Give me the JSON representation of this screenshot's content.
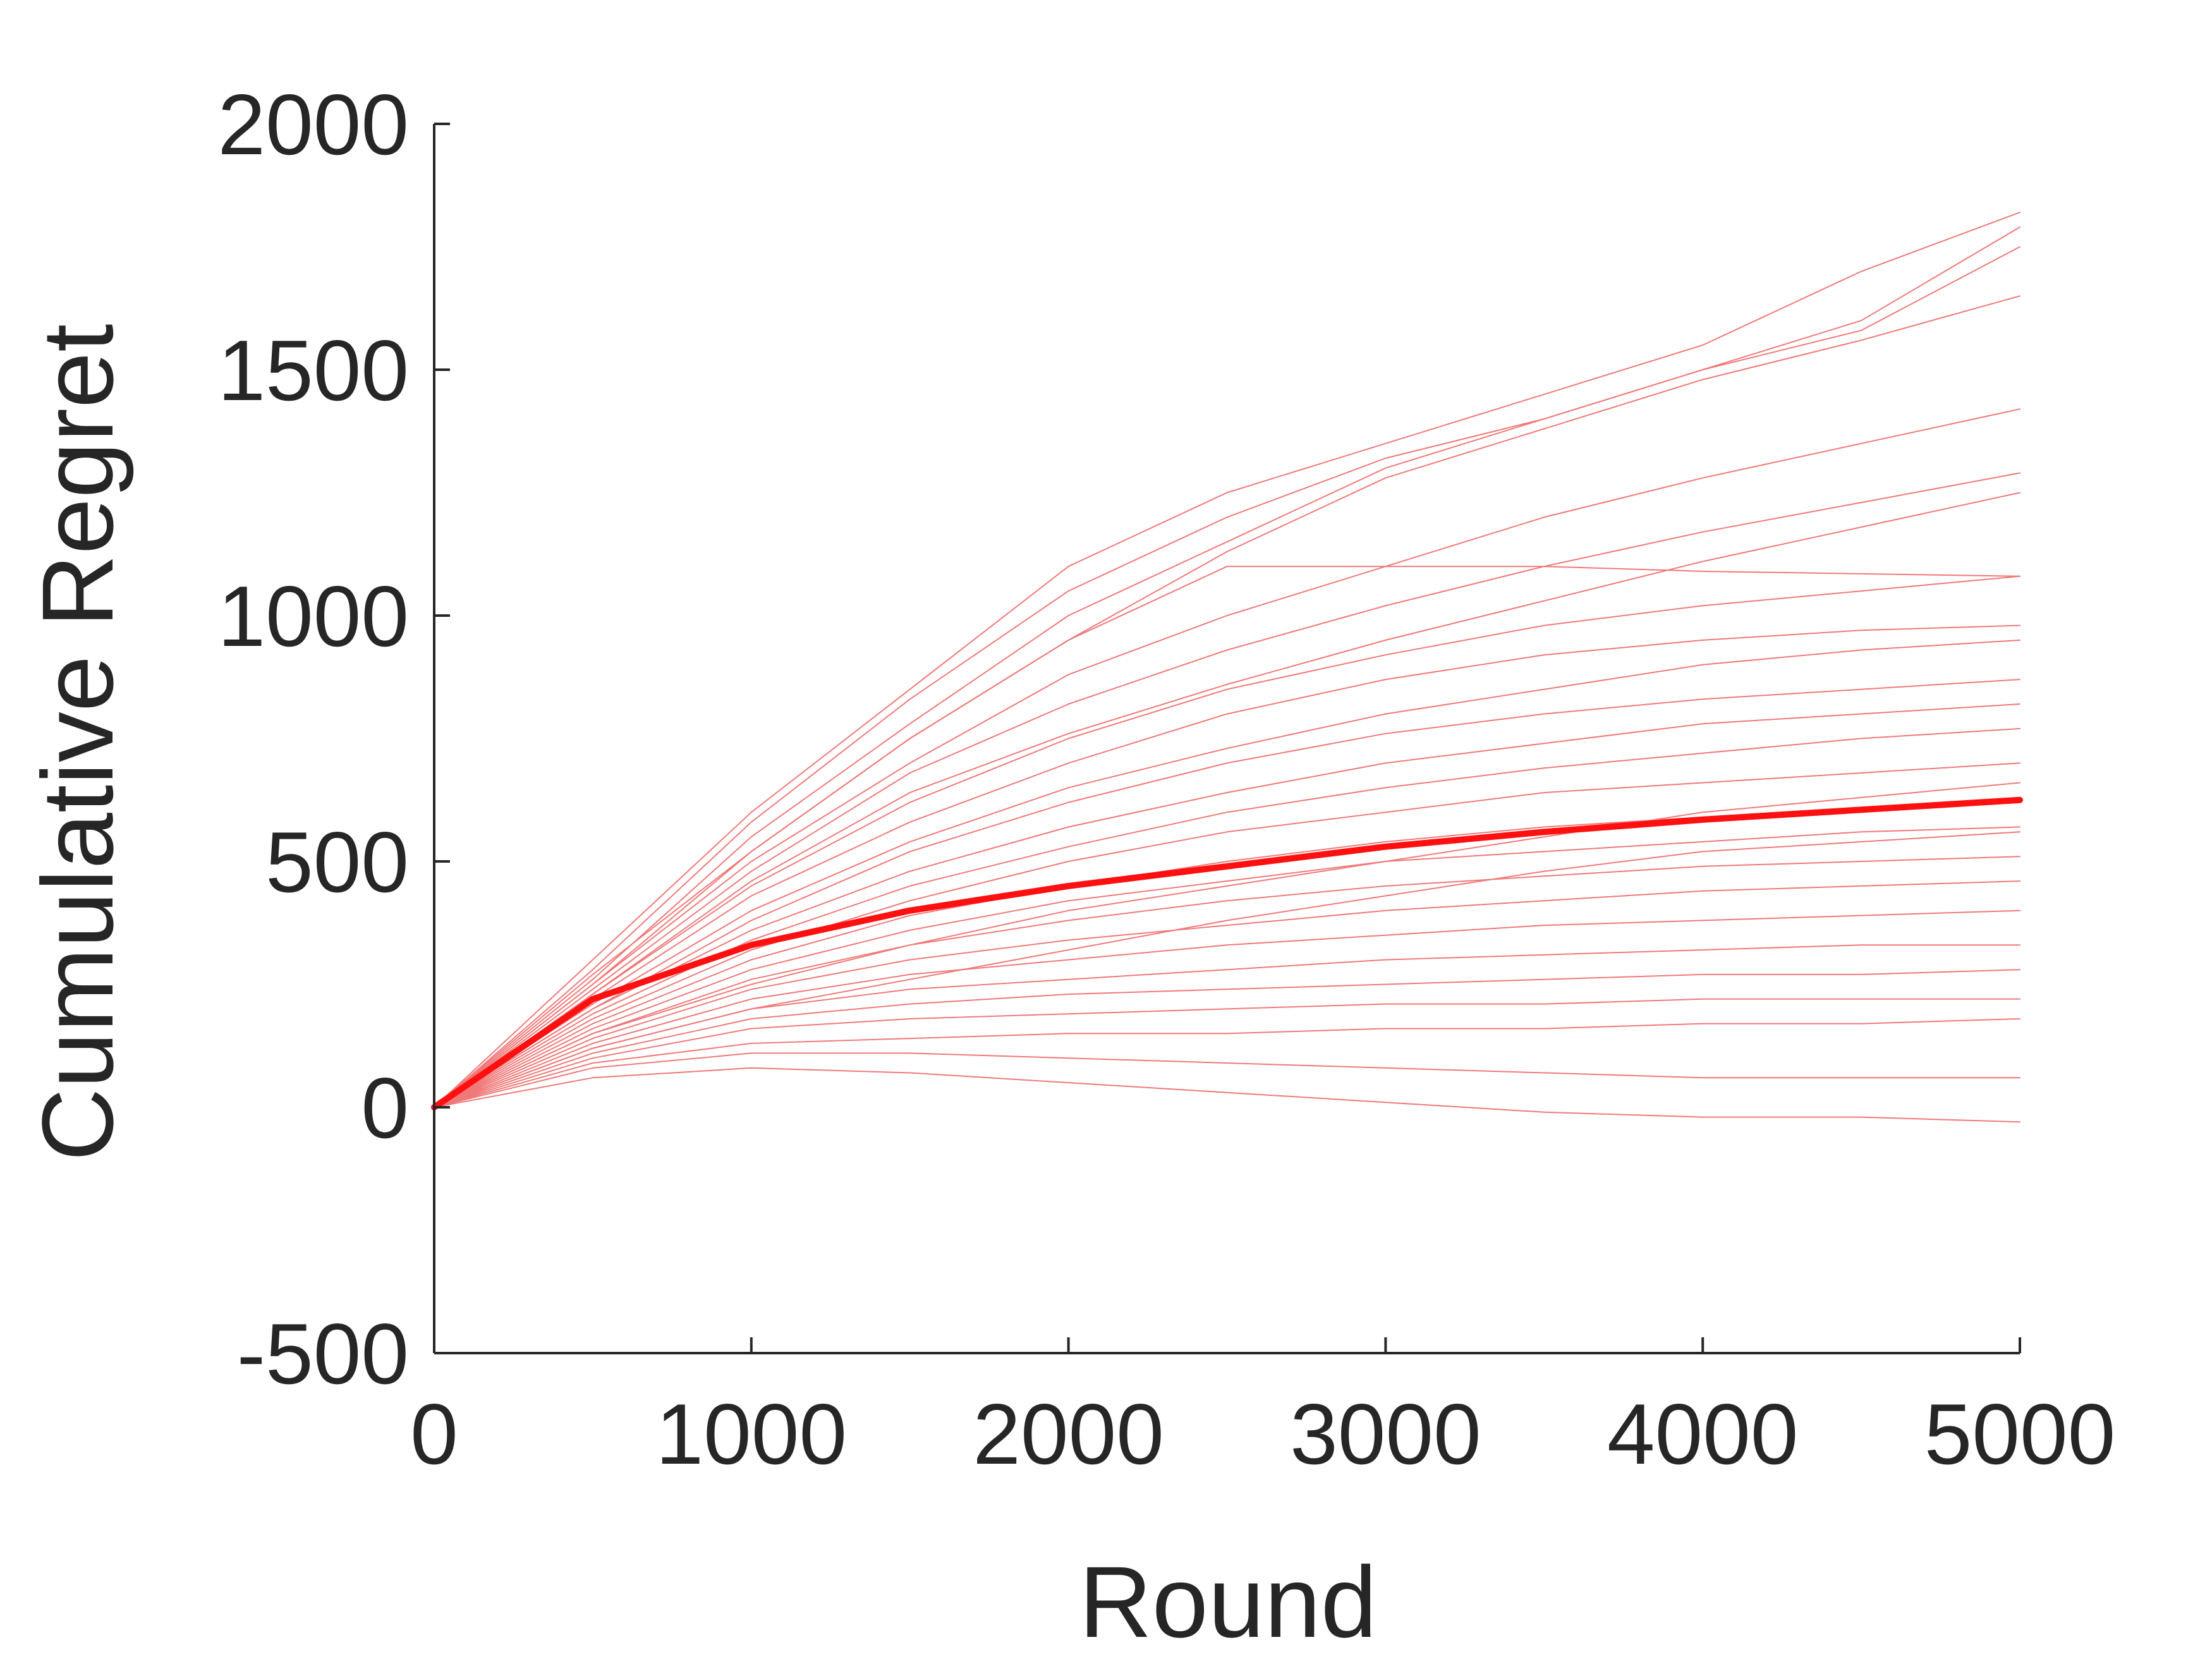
{
  "chart_data": {
    "type": "line",
    "x_label": "Round",
    "y_label": "Cumulative Regret",
    "x": [
      0,
      500,
      1000,
      1500,
      2000,
      2500,
      3000,
      3500,
      4000,
      4500,
      5000
    ],
    "xlim": [
      0,
      5000
    ],
    "xticks": [
      0,
      1000,
      2000,
      3000,
      4000,
      5000
    ],
    "ylim": [
      -500,
      2000
    ],
    "yticks": [
      -500,
      0,
      500,
      1000,
      1500,
      2000
    ],
    "grid": false,
    "series": [
      {
        "color": "#f07878",
        "line_width": 2,
        "values": [
          0,
          300,
          600,
          850,
          1100,
          1250,
          1350,
          1450,
          1550,
          1700,
          1820
        ]
      },
      {
        "color": "#f07878",
        "line_width": 2,
        "values": [
          0,
          280,
          580,
          830,
          1050,
          1200,
          1320,
          1400,
          1500,
          1600,
          1790
        ]
      },
      {
        "color": "#f07878",
        "line_width": 2,
        "values": [
          0,
          260,
          550,
          780,
          1000,
          1150,
          1300,
          1400,
          1500,
          1580,
          1750
        ]
      },
      {
        "color": "#f07878",
        "line_width": 2,
        "values": [
          0,
          270,
          520,
          750,
          950,
          1130,
          1280,
          1380,
          1480,
          1560,
          1650
        ]
      },
      {
        "color": "#f07878",
        "line_width": 2,
        "values": [
          0,
          250,
          500,
          700,
          880,
          1000,
          1100,
          1200,
          1280,
          1350,
          1420
        ]
      },
      {
        "color": "#f07878",
        "line_width": 2,
        "values": [
          0,
          240,
          480,
          680,
          820,
          930,
          1020,
          1100,
          1170,
          1230,
          1290
        ]
      },
      {
        "color": "#f07878",
        "line_width": 2,
        "values": [
          0,
          230,
          460,
          640,
          760,
          860,
          950,
          1030,
          1110,
          1180,
          1250
        ]
      },
      {
        "color": "#f07878",
        "line_width": 2,
        "values": [
          0,
          250,
          520,
          750,
          950,
          1100,
          1100,
          1100,
          1090,
          1085,
          1080
        ]
      },
      {
        "color": "#f07878",
        "line_width": 2,
        "values": [
          0,
          230,
          450,
          620,
          750,
          850,
          920,
          980,
          1020,
          1050,
          1080
        ]
      },
      {
        "color": "#f07878",
        "line_width": 2,
        "values": [
          0,
          220,
          430,
          580,
          700,
          800,
          870,
          920,
          950,
          970,
          980
        ]
      },
      {
        "color": "#f07878",
        "line_width": 2,
        "values": [
          0,
          210,
          400,
          540,
          650,
          730,
          800,
          850,
          900,
          930,
          950
        ]
      },
      {
        "color": "#f07878",
        "line_width": 2,
        "values": [
          0,
          200,
          380,
          520,
          620,
          700,
          760,
          800,
          830,
          850,
          870
        ]
      },
      {
        "color": "#f07878",
        "line_width": 2,
        "values": [
          0,
          200,
          360,
          480,
          570,
          640,
          700,
          740,
          780,
          800,
          820
        ]
      },
      {
        "color": "#f07878",
        "line_width": 2,
        "values": [
          0,
          190,
          340,
          450,
          530,
          600,
          650,
          690,
          720,
          750,
          770
        ]
      },
      {
        "color": "#f07878",
        "line_width": 2,
        "values": [
          0,
          180,
          320,
          420,
          500,
          560,
          600,
          640,
          660,
          680,
          700
        ]
      },
      {
        "color": "#f07878",
        "line_width": 2,
        "values": [
          0,
          170,
          300,
          390,
          450,
          500,
          540,
          570,
          590,
          610,
          620
        ]
      },
      {
        "color": "#f07878",
        "line_width": 2,
        "values": [
          0,
          160,
          280,
          360,
          420,
          460,
          500,
          520,
          540,
          560,
          570
        ]
      },
      {
        "color": "#f07878",
        "line_width": 2,
        "values": [
          0,
          150,
          260,
          330,
          380,
          420,
          450,
          470,
          490,
          500,
          510
        ]
      },
      {
        "color": "#f07878",
        "line_width": 2,
        "values": [
          0,
          140,
          240,
          300,
          340,
          370,
          400,
          420,
          440,
          450,
          460
        ]
      },
      {
        "color": "#f07878",
        "line_width": 2,
        "values": [
          0,
          130,
          220,
          270,
          300,
          330,
          350,
          370,
          380,
          390,
          400
        ]
      },
      {
        "color": "#f07878",
        "line_width": 2,
        "values": [
          0,
          120,
          200,
          240,
          260,
          280,
          300,
          310,
          320,
          330,
          330
        ]
      },
      {
        "color": "#f07878",
        "line_width": 2,
        "values": [
          0,
          110,
          180,
          210,
          230,
          240,
          250,
          260,
          270,
          270,
          280
        ]
      },
      {
        "color": "#f07878",
        "line_width": 2,
        "values": [
          0,
          100,
          160,
          180,
          190,
          200,
          210,
          210,
          220,
          220,
          220
        ]
      },
      {
        "color": "#f07878",
        "line_width": 2,
        "values": [
          0,
          90,
          130,
          140,
          150,
          150,
          160,
          160,
          170,
          170,
          180
        ]
      },
      {
        "color": "#f07878",
        "line_width": 2,
        "values": [
          0,
          80,
          110,
          110,
          100,
          90,
          80,
          70,
          60,
          60,
          60
        ]
      },
      {
        "color": "#f07878",
        "line_width": 2,
        "values": [
          0,
          60,
          80,
          70,
          50,
          30,
          10,
          -10,
          -20,
          -20,
          -30
        ]
      },
      {
        "color": "#f07878",
        "line_width": 2,
        "values": [
          0,
          120,
          200,
          260,
          320,
          380,
          430,
          480,
          520,
          540,
          560
        ]
      },
      {
        "color": "#f07878",
        "line_width": 2,
        "values": [
          0,
          150,
          250,
          330,
          400,
          450,
          500,
          550,
          600,
          630,
          660
        ]
      },
      {
        "color": "#ff1010",
        "line_width": 10,
        "values": [
          0,
          220,
          330,
          400,
          450,
          490,
          530,
          560,
          585,
          605,
          625
        ]
      }
    ]
  }
}
